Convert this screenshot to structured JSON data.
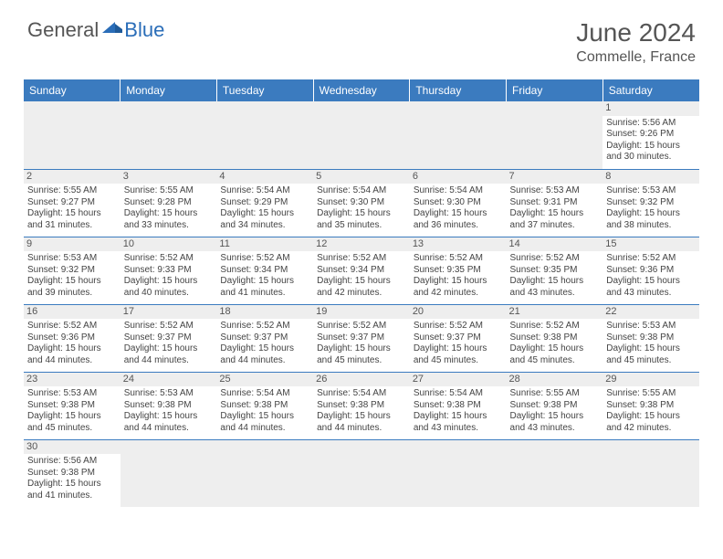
{
  "logo": {
    "text1": "General",
    "text2": "Blue"
  },
  "title": "June 2024",
  "location": "Commelle, France",
  "colors": {
    "header_bg": "#3b7bbf",
    "header_fg": "#ffffff",
    "row_divider": "#3b7bbf",
    "daynum_bg": "#eeeeee",
    "text": "#444444",
    "title": "#555555",
    "logo_gray": "#555555",
    "logo_blue": "#2a6db8"
  },
  "columns": [
    "Sunday",
    "Monday",
    "Tuesday",
    "Wednesday",
    "Thursday",
    "Friday",
    "Saturday"
  ],
  "weeks": [
    [
      null,
      null,
      null,
      null,
      null,
      null,
      {
        "n": "1",
        "sr": "5:56 AM",
        "ss": "9:26 PM",
        "dh": "15",
        "dm": "30"
      }
    ],
    [
      {
        "n": "2",
        "sr": "5:55 AM",
        "ss": "9:27 PM",
        "dh": "15",
        "dm": "31"
      },
      {
        "n": "3",
        "sr": "5:55 AM",
        "ss": "9:28 PM",
        "dh": "15",
        "dm": "33"
      },
      {
        "n": "4",
        "sr": "5:54 AM",
        "ss": "9:29 PM",
        "dh": "15",
        "dm": "34"
      },
      {
        "n": "5",
        "sr": "5:54 AM",
        "ss": "9:30 PM",
        "dh": "15",
        "dm": "35"
      },
      {
        "n": "6",
        "sr": "5:54 AM",
        "ss": "9:30 PM",
        "dh": "15",
        "dm": "36"
      },
      {
        "n": "7",
        "sr": "5:53 AM",
        "ss": "9:31 PM",
        "dh": "15",
        "dm": "37"
      },
      {
        "n": "8",
        "sr": "5:53 AM",
        "ss": "9:32 PM",
        "dh": "15",
        "dm": "38"
      }
    ],
    [
      {
        "n": "9",
        "sr": "5:53 AM",
        "ss": "9:32 PM",
        "dh": "15",
        "dm": "39"
      },
      {
        "n": "10",
        "sr": "5:52 AM",
        "ss": "9:33 PM",
        "dh": "15",
        "dm": "40"
      },
      {
        "n": "11",
        "sr": "5:52 AM",
        "ss": "9:34 PM",
        "dh": "15",
        "dm": "41"
      },
      {
        "n": "12",
        "sr": "5:52 AM",
        "ss": "9:34 PM",
        "dh": "15",
        "dm": "42"
      },
      {
        "n": "13",
        "sr": "5:52 AM",
        "ss": "9:35 PM",
        "dh": "15",
        "dm": "42"
      },
      {
        "n": "14",
        "sr": "5:52 AM",
        "ss": "9:35 PM",
        "dh": "15",
        "dm": "43"
      },
      {
        "n": "15",
        "sr": "5:52 AM",
        "ss": "9:36 PM",
        "dh": "15",
        "dm": "43"
      }
    ],
    [
      {
        "n": "16",
        "sr": "5:52 AM",
        "ss": "9:36 PM",
        "dh": "15",
        "dm": "44"
      },
      {
        "n": "17",
        "sr": "5:52 AM",
        "ss": "9:37 PM",
        "dh": "15",
        "dm": "44"
      },
      {
        "n": "18",
        "sr": "5:52 AM",
        "ss": "9:37 PM",
        "dh": "15",
        "dm": "44"
      },
      {
        "n": "19",
        "sr": "5:52 AM",
        "ss": "9:37 PM",
        "dh": "15",
        "dm": "45"
      },
      {
        "n": "20",
        "sr": "5:52 AM",
        "ss": "9:37 PM",
        "dh": "15",
        "dm": "45"
      },
      {
        "n": "21",
        "sr": "5:52 AM",
        "ss": "9:38 PM",
        "dh": "15",
        "dm": "45"
      },
      {
        "n": "22",
        "sr": "5:53 AM",
        "ss": "9:38 PM",
        "dh": "15",
        "dm": "45"
      }
    ],
    [
      {
        "n": "23",
        "sr": "5:53 AM",
        "ss": "9:38 PM",
        "dh": "15",
        "dm": "45"
      },
      {
        "n": "24",
        "sr": "5:53 AM",
        "ss": "9:38 PM",
        "dh": "15",
        "dm": "44"
      },
      {
        "n": "25",
        "sr": "5:54 AM",
        "ss": "9:38 PM",
        "dh": "15",
        "dm": "44"
      },
      {
        "n": "26",
        "sr": "5:54 AM",
        "ss": "9:38 PM",
        "dh": "15",
        "dm": "44"
      },
      {
        "n": "27",
        "sr": "5:54 AM",
        "ss": "9:38 PM",
        "dh": "15",
        "dm": "43"
      },
      {
        "n": "28",
        "sr": "5:55 AM",
        "ss": "9:38 PM",
        "dh": "15",
        "dm": "43"
      },
      {
        "n": "29",
        "sr": "5:55 AM",
        "ss": "9:38 PM",
        "dh": "15",
        "dm": "42"
      }
    ],
    [
      {
        "n": "30",
        "sr": "5:56 AM",
        "ss": "9:38 PM",
        "dh": "15",
        "dm": "41"
      },
      null,
      null,
      null,
      null,
      null,
      null
    ]
  ],
  "labels": {
    "sunrise": "Sunrise:",
    "sunset": "Sunset:",
    "daylight": "Daylight:",
    "hours": "hours",
    "and": "and",
    "minutes": "minutes."
  }
}
